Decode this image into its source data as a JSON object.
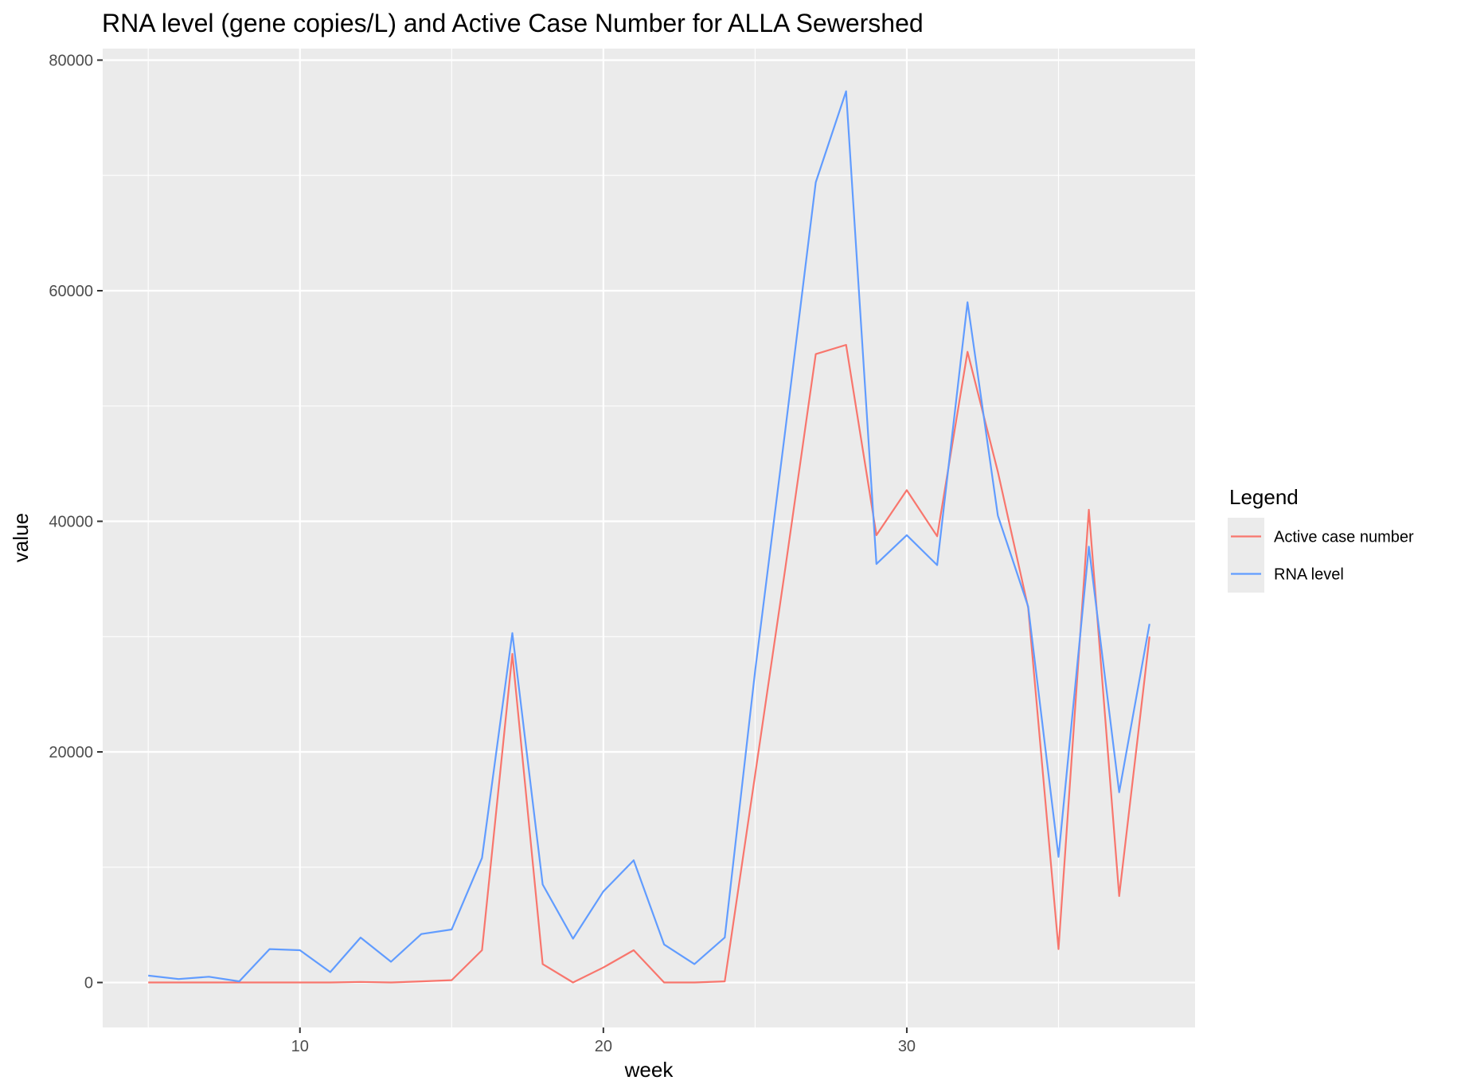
{
  "chart_data": {
    "type": "line",
    "title": "RNA level (gene copies/L) and Active Case Number for ALLA Sewershed",
    "xlabel": "week",
    "ylabel": "value",
    "xlim": [
      3.5,
      39.5
    ],
    "ylim": [
      -3900,
      81000
    ],
    "x_ticks": [
      10,
      20,
      30
    ],
    "x_tick_labels": [
      "10",
      "20",
      "30"
    ],
    "y_ticks": [
      0,
      20000,
      40000,
      60000,
      80000
    ],
    "y_tick_labels": [
      "0",
      "20000",
      "40000",
      "60000",
      "80000"
    ],
    "grid": true,
    "legend_title": "Legend",
    "legend_position": "right",
    "x": [
      5,
      6,
      7,
      8,
      9,
      10,
      11,
      12,
      13,
      14,
      15,
      16,
      17,
      18,
      19,
      20,
      21,
      22,
      23,
      24,
      25,
      26,
      27,
      28,
      29,
      30,
      31,
      32,
      33,
      34,
      35,
      36,
      37,
      38
    ],
    "series": [
      {
        "name": "Active case number",
        "color": "#F8766D",
        "values": [
          0,
          0,
          0,
          0,
          0,
          0,
          0,
          50,
          0,
          100,
          200,
          2800,
          28500,
          1600,
          0,
          1300,
          2800,
          0,
          0,
          100,
          18000,
          36000,
          54500,
          55300,
          38800,
          42700,
          38700,
          54700,
          44300,
          32500,
          2900,
          41000,
          7500,
          30000
        ]
      },
      {
        "name": "RNA level",
        "color": "#619CFF",
        "values": [
          600,
          300,
          500,
          100,
          2900,
          2800,
          900,
          3900,
          1800,
          4200,
          4600,
          10800,
          30300,
          8500,
          3800,
          7900,
          10600,
          3300,
          1600,
          3900,
          27000,
          48000,
          69400,
          77300,
          36300,
          38800,
          36200,
          59000,
          40500,
          32600,
          10900,
          37800,
          16500,
          31100
        ]
      }
    ]
  }
}
